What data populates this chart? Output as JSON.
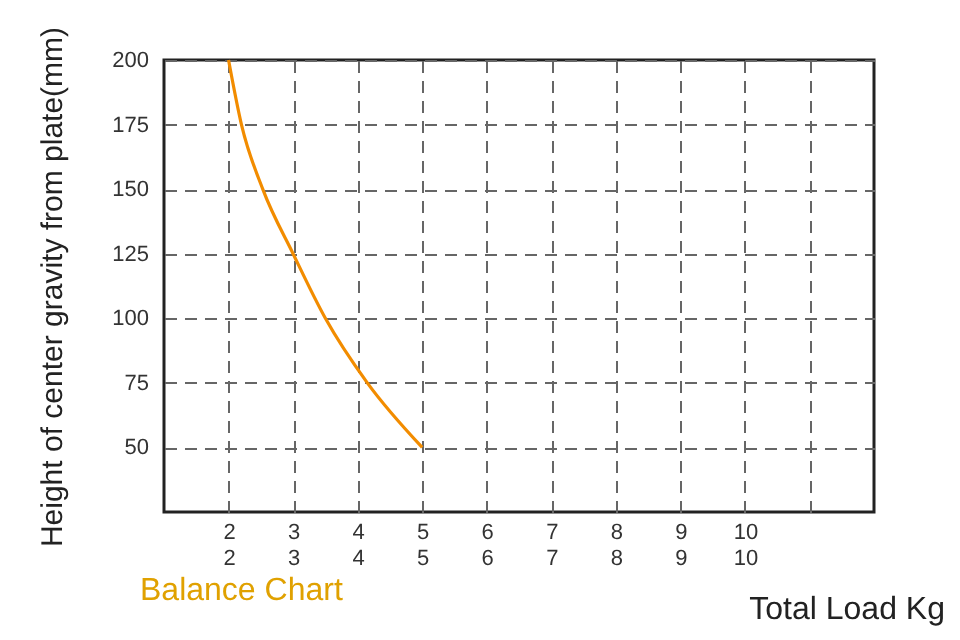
{
  "chart_data": {
    "type": "line",
    "title": "Balance Chart",
    "xlabel": "Total Load Kg",
    "ylabel": "Height of center gravity from plate(mm)",
    "x": [
      2,
      2.2,
      2.53,
      3.0,
      3.5,
      4.15,
      5
    ],
    "series": [
      {
        "color": "#f28c00",
        "values": [
          200,
          175,
          150,
          125,
          100,
          75,
          50
        ]
      }
    ],
    "xlim": [
      1,
      12
    ],
    "xticks": [
      2,
      3,
      4,
      5,
      6,
      7,
      8,
      9,
      10,
      {
        "value": 11,
        "label": null
      }
    ],
    "x2lim": [
      1,
      12
    ],
    "x2ticks": [
      2,
      3,
      4,
      5,
      6,
      7,
      8,
      9,
      10
    ],
    "ylim": [
      25,
      200
    ],
    "yticks": [
      50,
      75,
      100,
      125,
      150,
      175,
      200
    ],
    "grid": true,
    "marker": "none",
    "line_style": "solid"
  }
}
